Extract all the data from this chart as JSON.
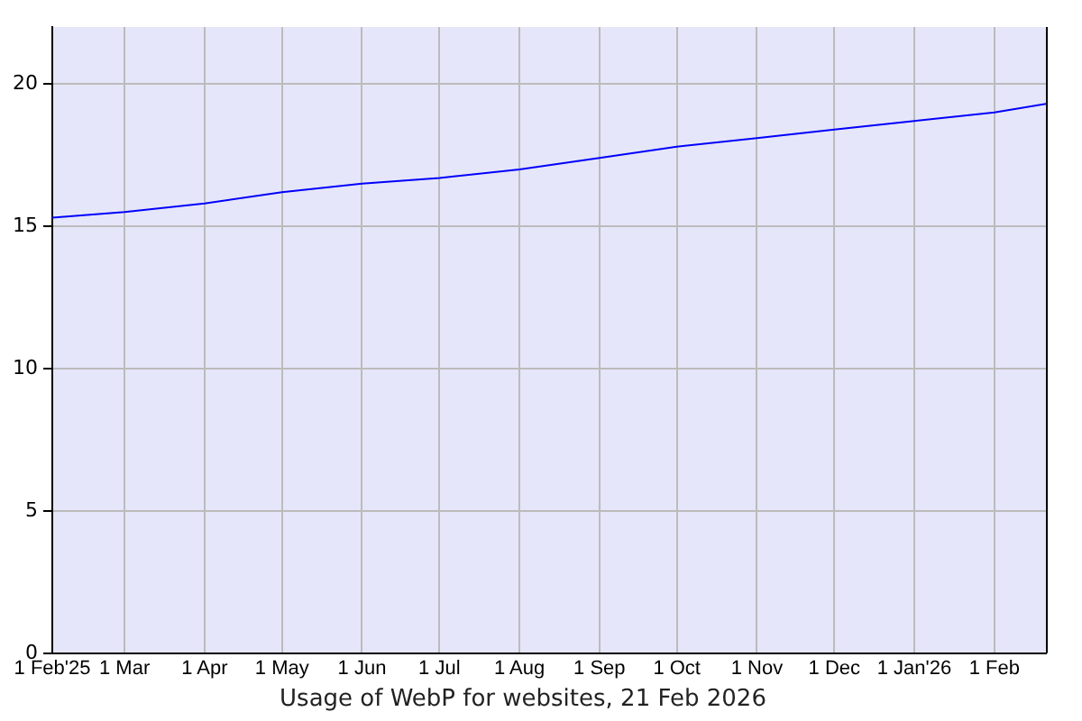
{
  "chart_data": {
    "type": "line",
    "title": "Usage of WebP for websites, 21 Feb 2026",
    "x": [
      "2025-02-01",
      "2025-03-01",
      "2025-04-01",
      "2025-05-01",
      "2025-06-01",
      "2025-07-01",
      "2025-08-01",
      "2025-09-01",
      "2025-10-01",
      "2025-11-01",
      "2025-12-01",
      "2026-01-01",
      "2026-02-01",
      "2026-02-21"
    ],
    "series": [
      {
        "color": "#0000ff",
        "values": [
          15.3,
          15.5,
          15.8,
          16.2,
          16.5,
          16.7,
          17.0,
          17.4,
          17.8,
          18.1,
          18.4,
          18.7,
          19.0,
          19.3
        ]
      }
    ],
    "xlim": [
      "2025-02-01",
      "2026-02-21"
    ],
    "xticks": [
      {
        "value": "2025-02-01",
        "label": "1 Feb'25"
      },
      {
        "value": "2025-03-01",
        "label": "1 Mar"
      },
      {
        "value": "2025-04-01",
        "label": "1 Apr"
      },
      {
        "value": "2025-05-01",
        "label": "1 May"
      },
      {
        "value": "2025-06-01",
        "label": "1 Jun"
      },
      {
        "value": "2025-07-01",
        "label": "1 Jul"
      },
      {
        "value": "2025-08-01",
        "label": "1 Aug"
      },
      {
        "value": "2025-09-01",
        "label": "1 Sep"
      },
      {
        "value": "2025-10-01",
        "label": "1 Oct"
      },
      {
        "value": "2025-11-01",
        "label": "1 Nov"
      },
      {
        "value": "2025-12-01",
        "label": "1 Dec"
      },
      {
        "value": "2026-01-01",
        "label": "1 Jan'26"
      },
      {
        "value": "2026-02-01",
        "label": "1 Feb"
      }
    ],
    "ylim": [
      0,
      22
    ],
    "yticks": [
      0,
      5,
      10,
      15,
      20
    ],
    "grid": true
  }
}
